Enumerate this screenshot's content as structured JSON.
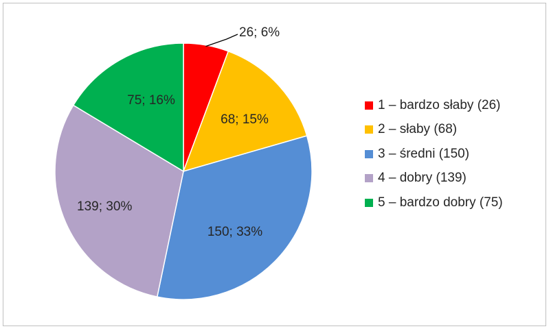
{
  "chart_data": {
    "type": "pie",
    "title": "",
    "slices": [
      {
        "label": "1 – bardzo słaby (26)",
        "value": 26,
        "percent": 6,
        "data_label": "26; 6%",
        "color": "#ff0000"
      },
      {
        "label": "2 – słaby (68)",
        "value": 68,
        "percent": 15,
        "data_label": "68; 15%",
        "color": "#ffc000"
      },
      {
        "label": "3 – średni (150)",
        "value": 150,
        "percent": 33,
        "data_label": "150; 33%",
        "color": "#558ed5"
      },
      {
        "label": "4 – dobry (139)",
        "value": 139,
        "percent": 30,
        "data_label": "139; 30%",
        "color": "#b3a2c7"
      },
      {
        "label": "5 – bardzo dobry (75)",
        "value": 75,
        "percent": 16,
        "data_label": "75; 16%",
        "color": "#00b050"
      }
    ],
    "legend_position": "right",
    "start_angle": "top",
    "direction": "clockwise"
  }
}
